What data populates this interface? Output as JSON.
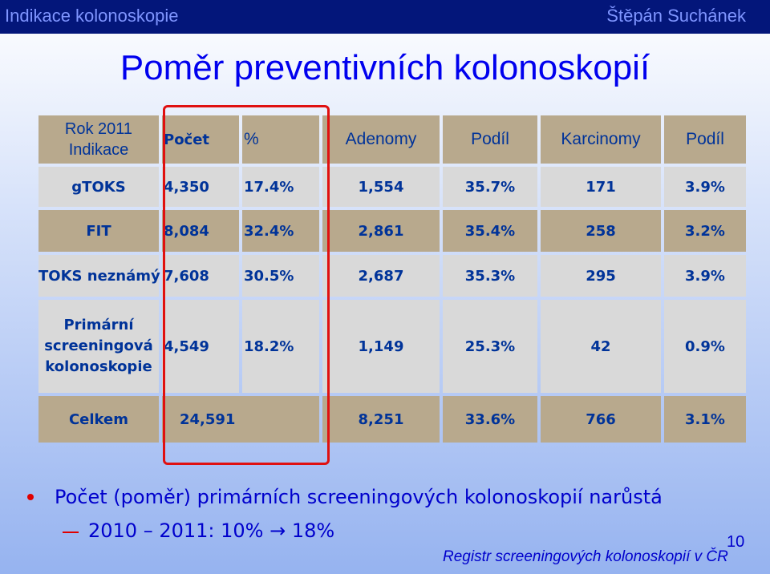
{
  "header": {
    "left": "Indikace kolonoskopie",
    "right": "Štěpán Suchánek"
  },
  "title": "Poměr preventivních kolonoskopií",
  "table": {
    "header_row": {
      "label_line1": "Rok 2011",
      "label_line2": "Indikace",
      "cols": [
        "Počet",
        "%",
        "Adenomy",
        "Podíl",
        "Karcinomy",
        "Podíl"
      ]
    },
    "rows": [
      {
        "label": "gTOKS",
        "cells": [
          "4,350",
          "17.4%",
          "1,554",
          "35.7%",
          "171",
          "3.9%"
        ]
      },
      {
        "label": "FIT",
        "cells": [
          "8,084",
          "32.4%",
          "2,861",
          "35.4%",
          "258",
          "3.2%"
        ]
      },
      {
        "label": "TOKS neznámý",
        "cells": [
          "7,608",
          "30.5%",
          "2,687",
          "35.3%",
          "295",
          "3.9%"
        ]
      },
      {
        "label_lines": [
          "Primární",
          "screeningová",
          "kolonoskopie"
        ],
        "cells": [
          "4,549",
          "18.2%",
          "1,149",
          "25.3%",
          "42",
          "0.9%"
        ]
      }
    ],
    "total": {
      "label": "Celkem",
      "cells": [
        "24,591",
        "",
        "8,251",
        "33.6%",
        "766",
        "3.1%"
      ]
    }
  },
  "bullets": {
    "main": "Počet (poměr) primárních screeningových kolonoskopií narůstá",
    "sub": "2010 – 2011: 10% → 18%"
  },
  "source": "Registr screeningových kolonoskopií v ČR",
  "page_number": "10",
  "colors": {
    "topbar": "#03167a",
    "title": "#0000ee",
    "cell_header": "#b8a98d",
    "cell_body": "#d9d9d9",
    "highlight": "#e01010"
  }
}
